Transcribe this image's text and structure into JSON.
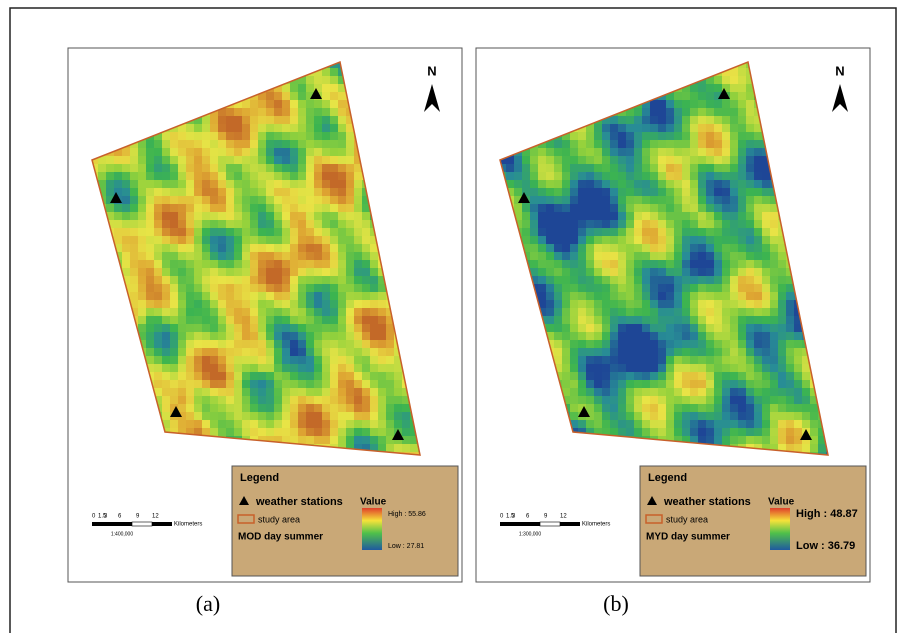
{
  "panels": [
    {
      "label": "(a)",
      "north": "N",
      "legend": {
        "title": "Legend",
        "stations": "weather stations",
        "study_area": "study area",
        "value": "Value",
        "high": "High : 55.86",
        "low": "Low : 27.81",
        "product": "MOD day summer"
      },
      "scale": {
        "ticks": [
          "0",
          "1.5",
          "3",
          "6",
          "9",
          "12"
        ],
        "unit": "Kilometers",
        "ratio": "1:400,000"
      }
    },
    {
      "label": "(b)",
      "north": "N",
      "legend": {
        "title": "Legend",
        "stations": "weather stations",
        "study_area": "study area",
        "value": "Value",
        "high": "High : 48.87",
        "low": "Low : 36.79",
        "product": "MYD day summer"
      },
      "scale": {
        "ticks": [
          "0",
          "1.5",
          "3",
          "6",
          "9",
          "12"
        ],
        "unit": "Kilometers",
        "ratio": "1:300,000"
      }
    }
  ]
}
